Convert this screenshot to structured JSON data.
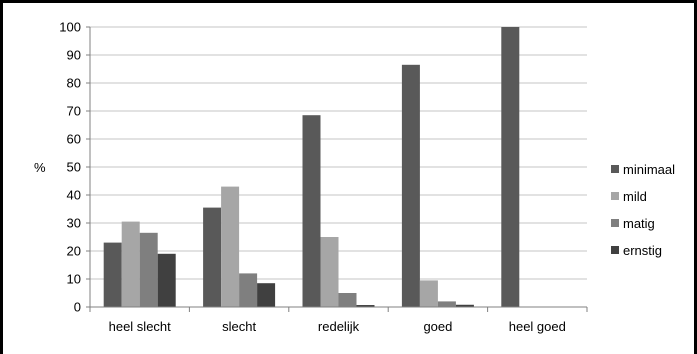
{
  "chart_data": {
    "type": "bar",
    "title": "",
    "xlabel": "",
    "ylabel": "%",
    "ylim": [
      0,
      100
    ],
    "yticks": [
      0,
      10,
      20,
      30,
      40,
      50,
      60,
      70,
      80,
      90,
      100
    ],
    "grid": true,
    "legend_position": "right",
    "categories": [
      "heel slecht",
      "slecht",
      "redelijk",
      "goed",
      "heel goed"
    ],
    "series": [
      {
        "name": "minimaal",
        "color": "#595959",
        "values": [
          23,
          35.5,
          68.5,
          86.5,
          100
        ]
      },
      {
        "name": "mild",
        "color": "#a6a6a6",
        "values": [
          30.5,
          43,
          25,
          9.5,
          0
        ]
      },
      {
        "name": "matig",
        "color": "#7f7f7f",
        "values": [
          26.5,
          12,
          5,
          2,
          0
        ]
      },
      {
        "name": "ernstig",
        "color": "#404040",
        "values": [
          19,
          8.5,
          0.7,
          0.8,
          0
        ]
      }
    ]
  }
}
